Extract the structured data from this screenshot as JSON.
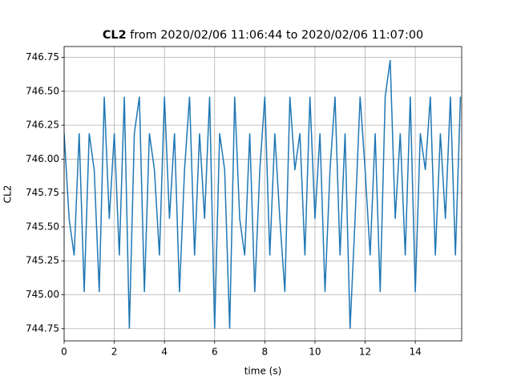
{
  "chart_data": {
    "type": "line",
    "title": {
      "bold": "CL2",
      "rest": "from 2020/02/06 11:06:44 to 2020/02/06 11:07:00"
    },
    "x_label": "time (s)",
    "y_label": "CL2",
    "x": [
      0,
      0.2,
      0.4,
      0.6,
      0.8,
      1.0,
      1.2,
      1.4,
      1.6,
      1.8,
      2.0,
      2.2,
      2.4,
      2.6,
      2.8,
      3.0,
      3.2,
      3.4,
      3.6,
      3.8,
      4.0,
      4.2,
      4.4,
      4.6,
      4.8,
      5.0,
      5.2,
      5.4,
      5.6,
      5.8,
      6.0,
      6.2,
      6.4,
      6.6,
      6.8,
      7.0,
      7.2,
      7.4,
      7.6,
      7.8,
      8.0,
      8.2,
      8.4,
      8.6,
      8.8,
      9.0,
      9.2,
      9.4,
      9.6,
      9.8,
      10.0,
      10.2,
      10.4,
      10.6,
      10.8,
      11.0,
      11.2,
      11.4,
      11.6,
      11.8,
      12.0,
      12.2,
      12.4,
      12.6,
      12.8,
      13.0,
      13.2,
      13.4,
      13.6,
      13.8,
      14.0,
      14.2,
      14.4,
      14.6,
      14.8,
      15.0,
      15.2,
      15.4,
      15.6,
      15.8
    ],
    "series": [
      {
        "name": "CL2",
        "color": "#1f77b4",
        "values": [
          746.19,
          745.56,
          745.29,
          746.19,
          745.02,
          746.19,
          745.92,
          745.02,
          746.46,
          745.56,
          746.19,
          745.29,
          746.46,
          744.75,
          746.19,
          746.46,
          745.02,
          746.19,
          745.92,
          745.29,
          746.46,
          745.56,
          746.19,
          745.02,
          745.92,
          746.46,
          745.29,
          746.19,
          745.56,
          746.46,
          744.75,
          746.19,
          745.92,
          744.75,
          746.46,
          745.56,
          745.29,
          746.19,
          745.02,
          745.92,
          746.46,
          745.29,
          746.19,
          745.56,
          745.02,
          746.46,
          745.92,
          746.19,
          745.29,
          746.46,
          745.56,
          746.19,
          745.02,
          745.92,
          746.46,
          745.29,
          746.19,
          744.75,
          745.56,
          746.46,
          745.92,
          745.29,
          746.19,
          745.02,
          746.46,
          746.73,
          745.56,
          746.19,
          745.29,
          746.46,
          745.02,
          746.19,
          745.92,
          746.46,
          745.29,
          746.19,
          745.56,
          746.46,
          745.29,
          746.46
        ]
      }
    ],
    "xlim": [
      0,
      15.85
    ],
    "ylim": [
      744.66,
      746.83
    ],
    "xticks": [
      0,
      2,
      4,
      6,
      8,
      10,
      12,
      14
    ],
    "yticks": [
      744.75,
      {
        "value": 745,
        "label": "745.00"
      },
      745.25,
      {
        "value": 745.5,
        "label": "745.50"
      },
      745.75,
      {
        "value": 746,
        "label": "746.00"
      },
      746.25,
      {
        "value": 746.5,
        "label": "746.50"
      },
      746.75
    ],
    "grid": true
  }
}
